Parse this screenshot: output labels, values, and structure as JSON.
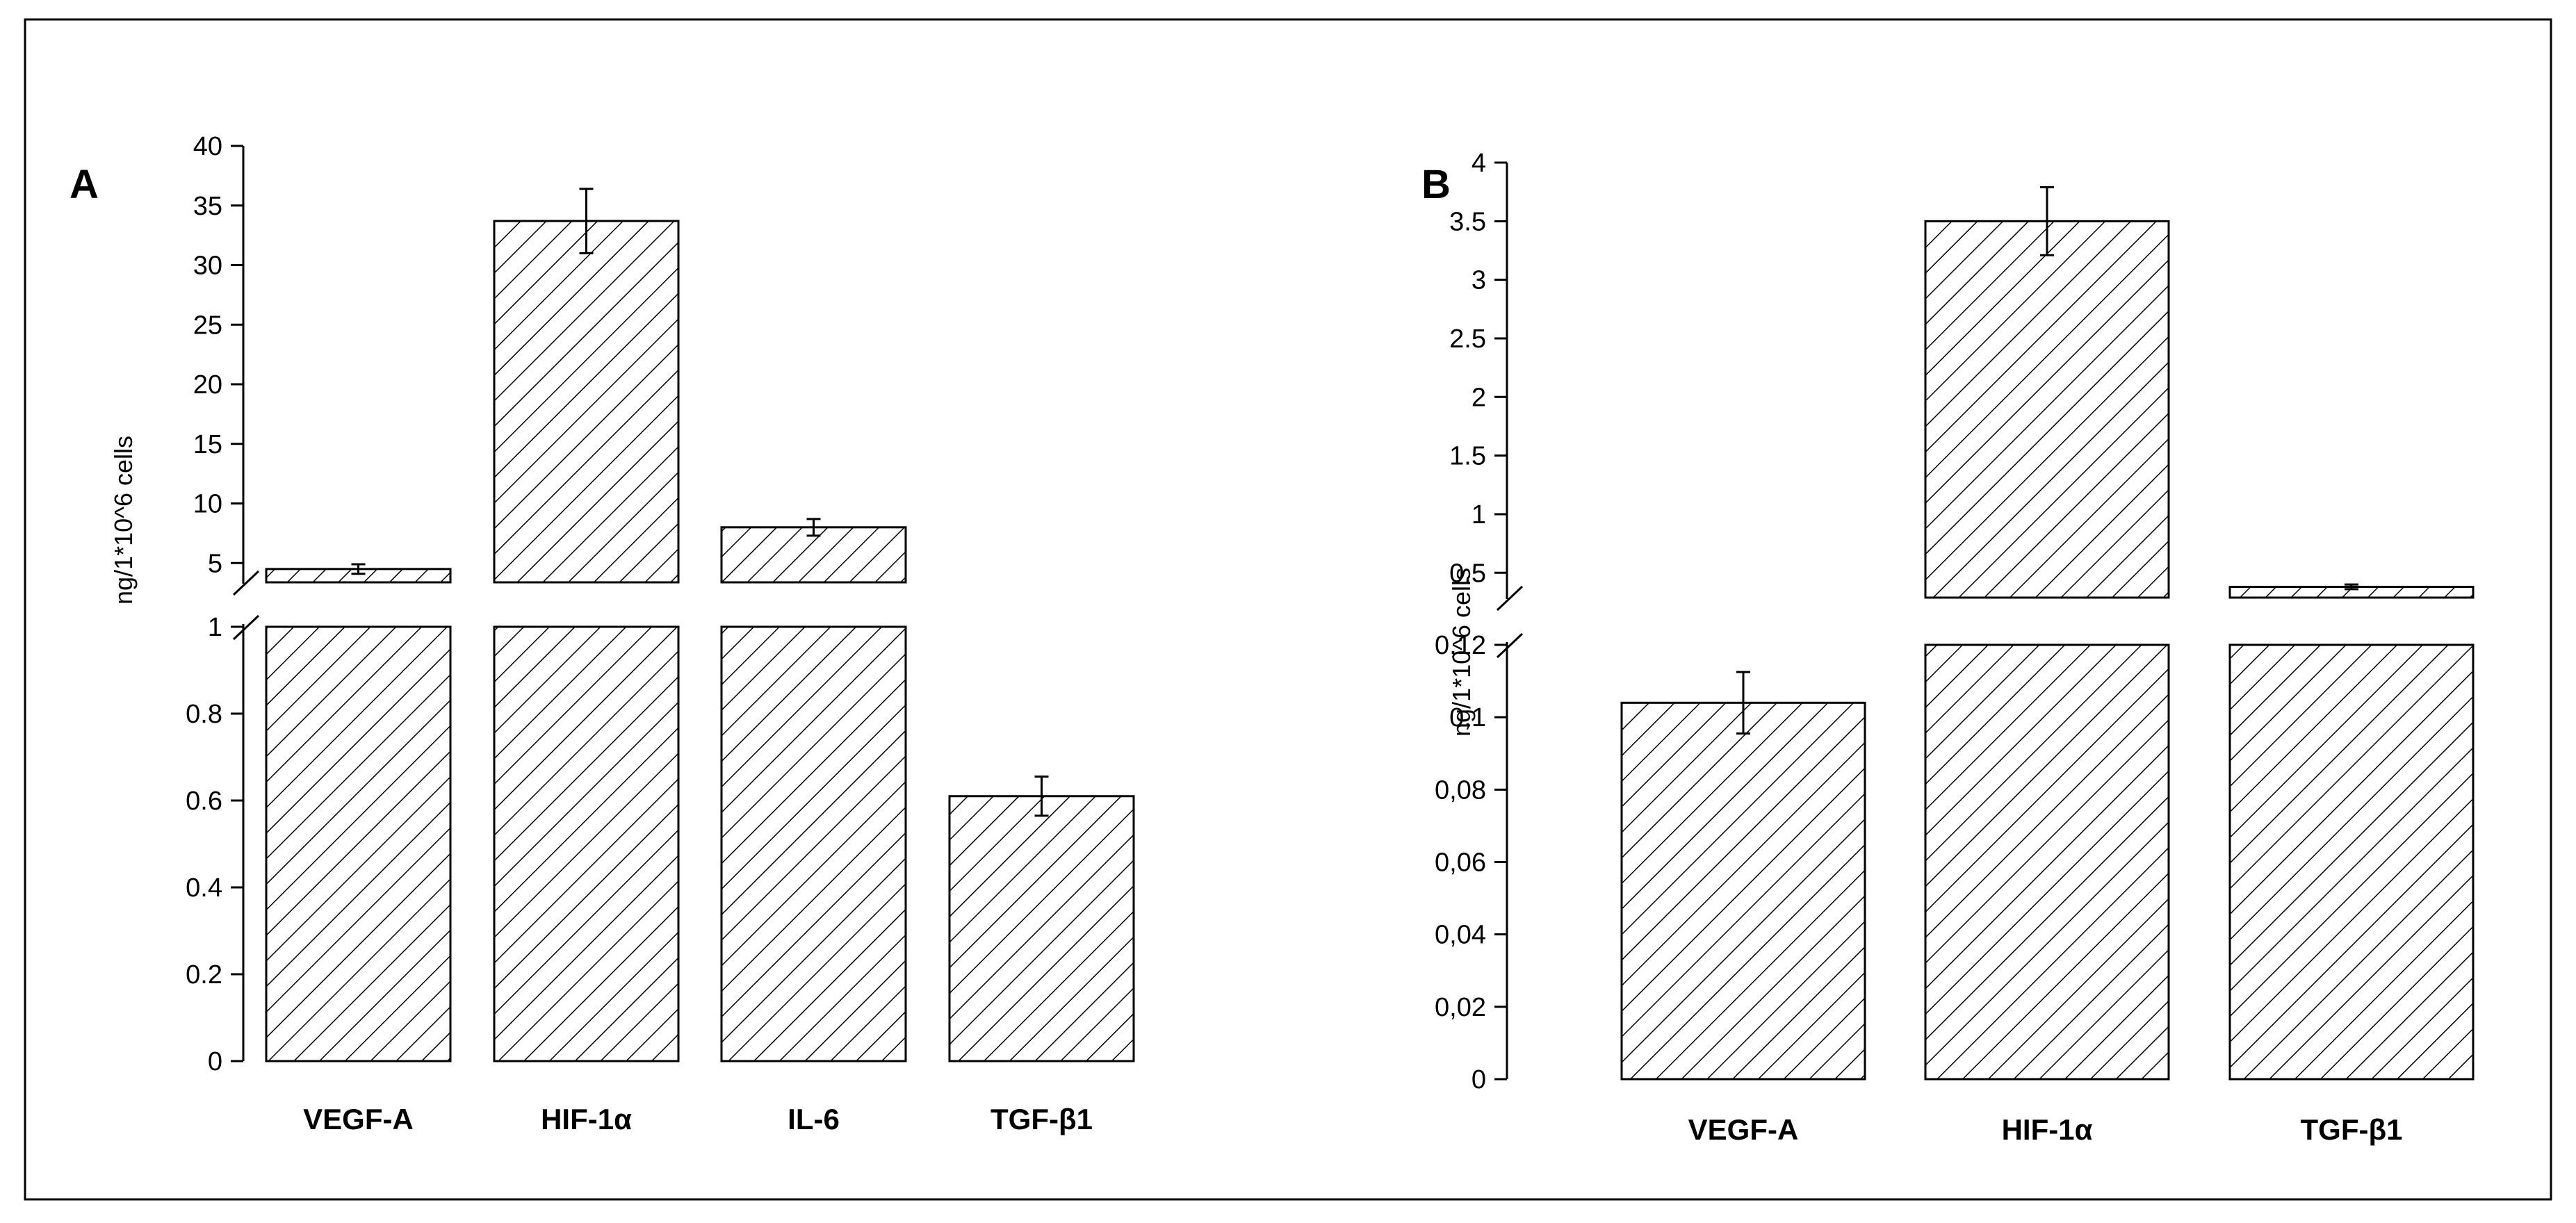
{
  "chart_data": [
    {
      "type": "bar",
      "panel_label": "A",
      "ylabel": "ng/1*10^6 cells",
      "categories": [
        "VEGF-A",
        "HIF-1α",
        "IL-6",
        "TGF-β1"
      ],
      "values": [
        4.5,
        33.7,
        8.0,
        0.61
      ],
      "errors": [
        0.4,
        2.7,
        0.7,
        0.045
      ],
      "y_axis_break": {
        "lower_segment": {
          "range": [
            0,
            1
          ],
          "ticks": [
            "0",
            "0.2",
            "0.4",
            "0.6",
            "0.8",
            "1"
          ]
        },
        "upper_segment": {
          "range": [
            3.5,
            40
          ],
          "ticks": [
            "5",
            "10",
            "15",
            "20",
            "25",
            "30",
            "35",
            "40"
          ]
        }
      },
      "fill_pattern": "diagonal-hatch"
    },
    {
      "type": "bar",
      "panel_label": "B",
      "ylabel": "ng/1*10^6 cells",
      "categories": [
        "VEGF-A",
        "HIF-1α",
        "TGF-β1"
      ],
      "values": [
        0.104,
        3.5,
        0.38
      ],
      "errors": [
        0.0085,
        0.29,
        0.02
      ],
      "y_axis_break": {
        "lower_segment": {
          "range": [
            0,
            0.12
          ],
          "ticks": [
            "0",
            "0,02",
            "0,04",
            "0,06",
            "0,08",
            "0,1",
            "0,12"
          ]
        },
        "upper_segment": {
          "range": [
            0.3,
            4
          ],
          "ticks": [
            "0.5",
            "1",
            "1.5",
            "2",
            "2.5",
            "3",
            "3.5",
            "4"
          ]
        }
      },
      "fill_pattern": "diagonal-hatch"
    }
  ]
}
